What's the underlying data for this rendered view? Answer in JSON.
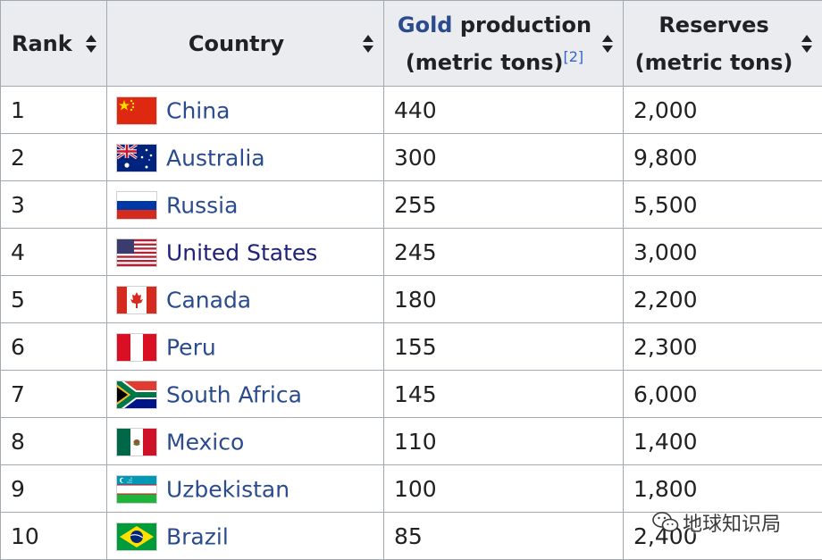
{
  "table": {
    "headers": {
      "rank": "Rank",
      "country": "Country",
      "production_link": "Gold",
      "production_rest": " production",
      "production_unit": "(metric tons)",
      "production_ref": "[2]",
      "reserves": "Reserves",
      "reserves_unit": "(metric tons)"
    },
    "rows": [
      {
        "rank": "1",
        "country": "China",
        "production": "440",
        "reserves": "2,000",
        "flag_icon": "china-flag"
      },
      {
        "rank": "2",
        "country": "Australia",
        "production": "300",
        "reserves": "9,800",
        "flag_icon": "australia-flag"
      },
      {
        "rank": "3",
        "country": "Russia",
        "production": "255",
        "reserves": "5,500",
        "flag_icon": "russia-flag"
      },
      {
        "rank": "4",
        "country": "United States",
        "production": "245",
        "reserves": "3,000",
        "flag_icon": "usa-flag"
      },
      {
        "rank": "5",
        "country": "Canada",
        "production": "180",
        "reserves": "2,200",
        "flag_icon": "canada-flag"
      },
      {
        "rank": "6",
        "country": "Peru",
        "production": "155",
        "reserves": "2,300",
        "flag_icon": "peru-flag"
      },
      {
        "rank": "7",
        "country": "South Africa",
        "production": "145",
        "reserves": "6,000",
        "flag_icon": "south-africa-flag"
      },
      {
        "rank": "8",
        "country": "Mexico",
        "production": "110",
        "reserves": "1,400",
        "flag_icon": "mexico-flag"
      },
      {
        "rank": "9",
        "country": "Uzbekistan",
        "production": "100",
        "reserves": "1,800",
        "flag_icon": "uzbekistan-flag"
      },
      {
        "rank": "10",
        "country": "Brazil",
        "production": "85",
        "reserves": "2,400",
        "flag_icon": "brazil-flag"
      }
    ]
  },
  "watermark": {
    "text": "地球知识局",
    "icon": "wechat-icon"
  },
  "colors": {
    "header_bg": "#eaecf0",
    "border": "#a2a9b1",
    "link": "#2a4b8d",
    "visited_link": "#202278"
  }
}
